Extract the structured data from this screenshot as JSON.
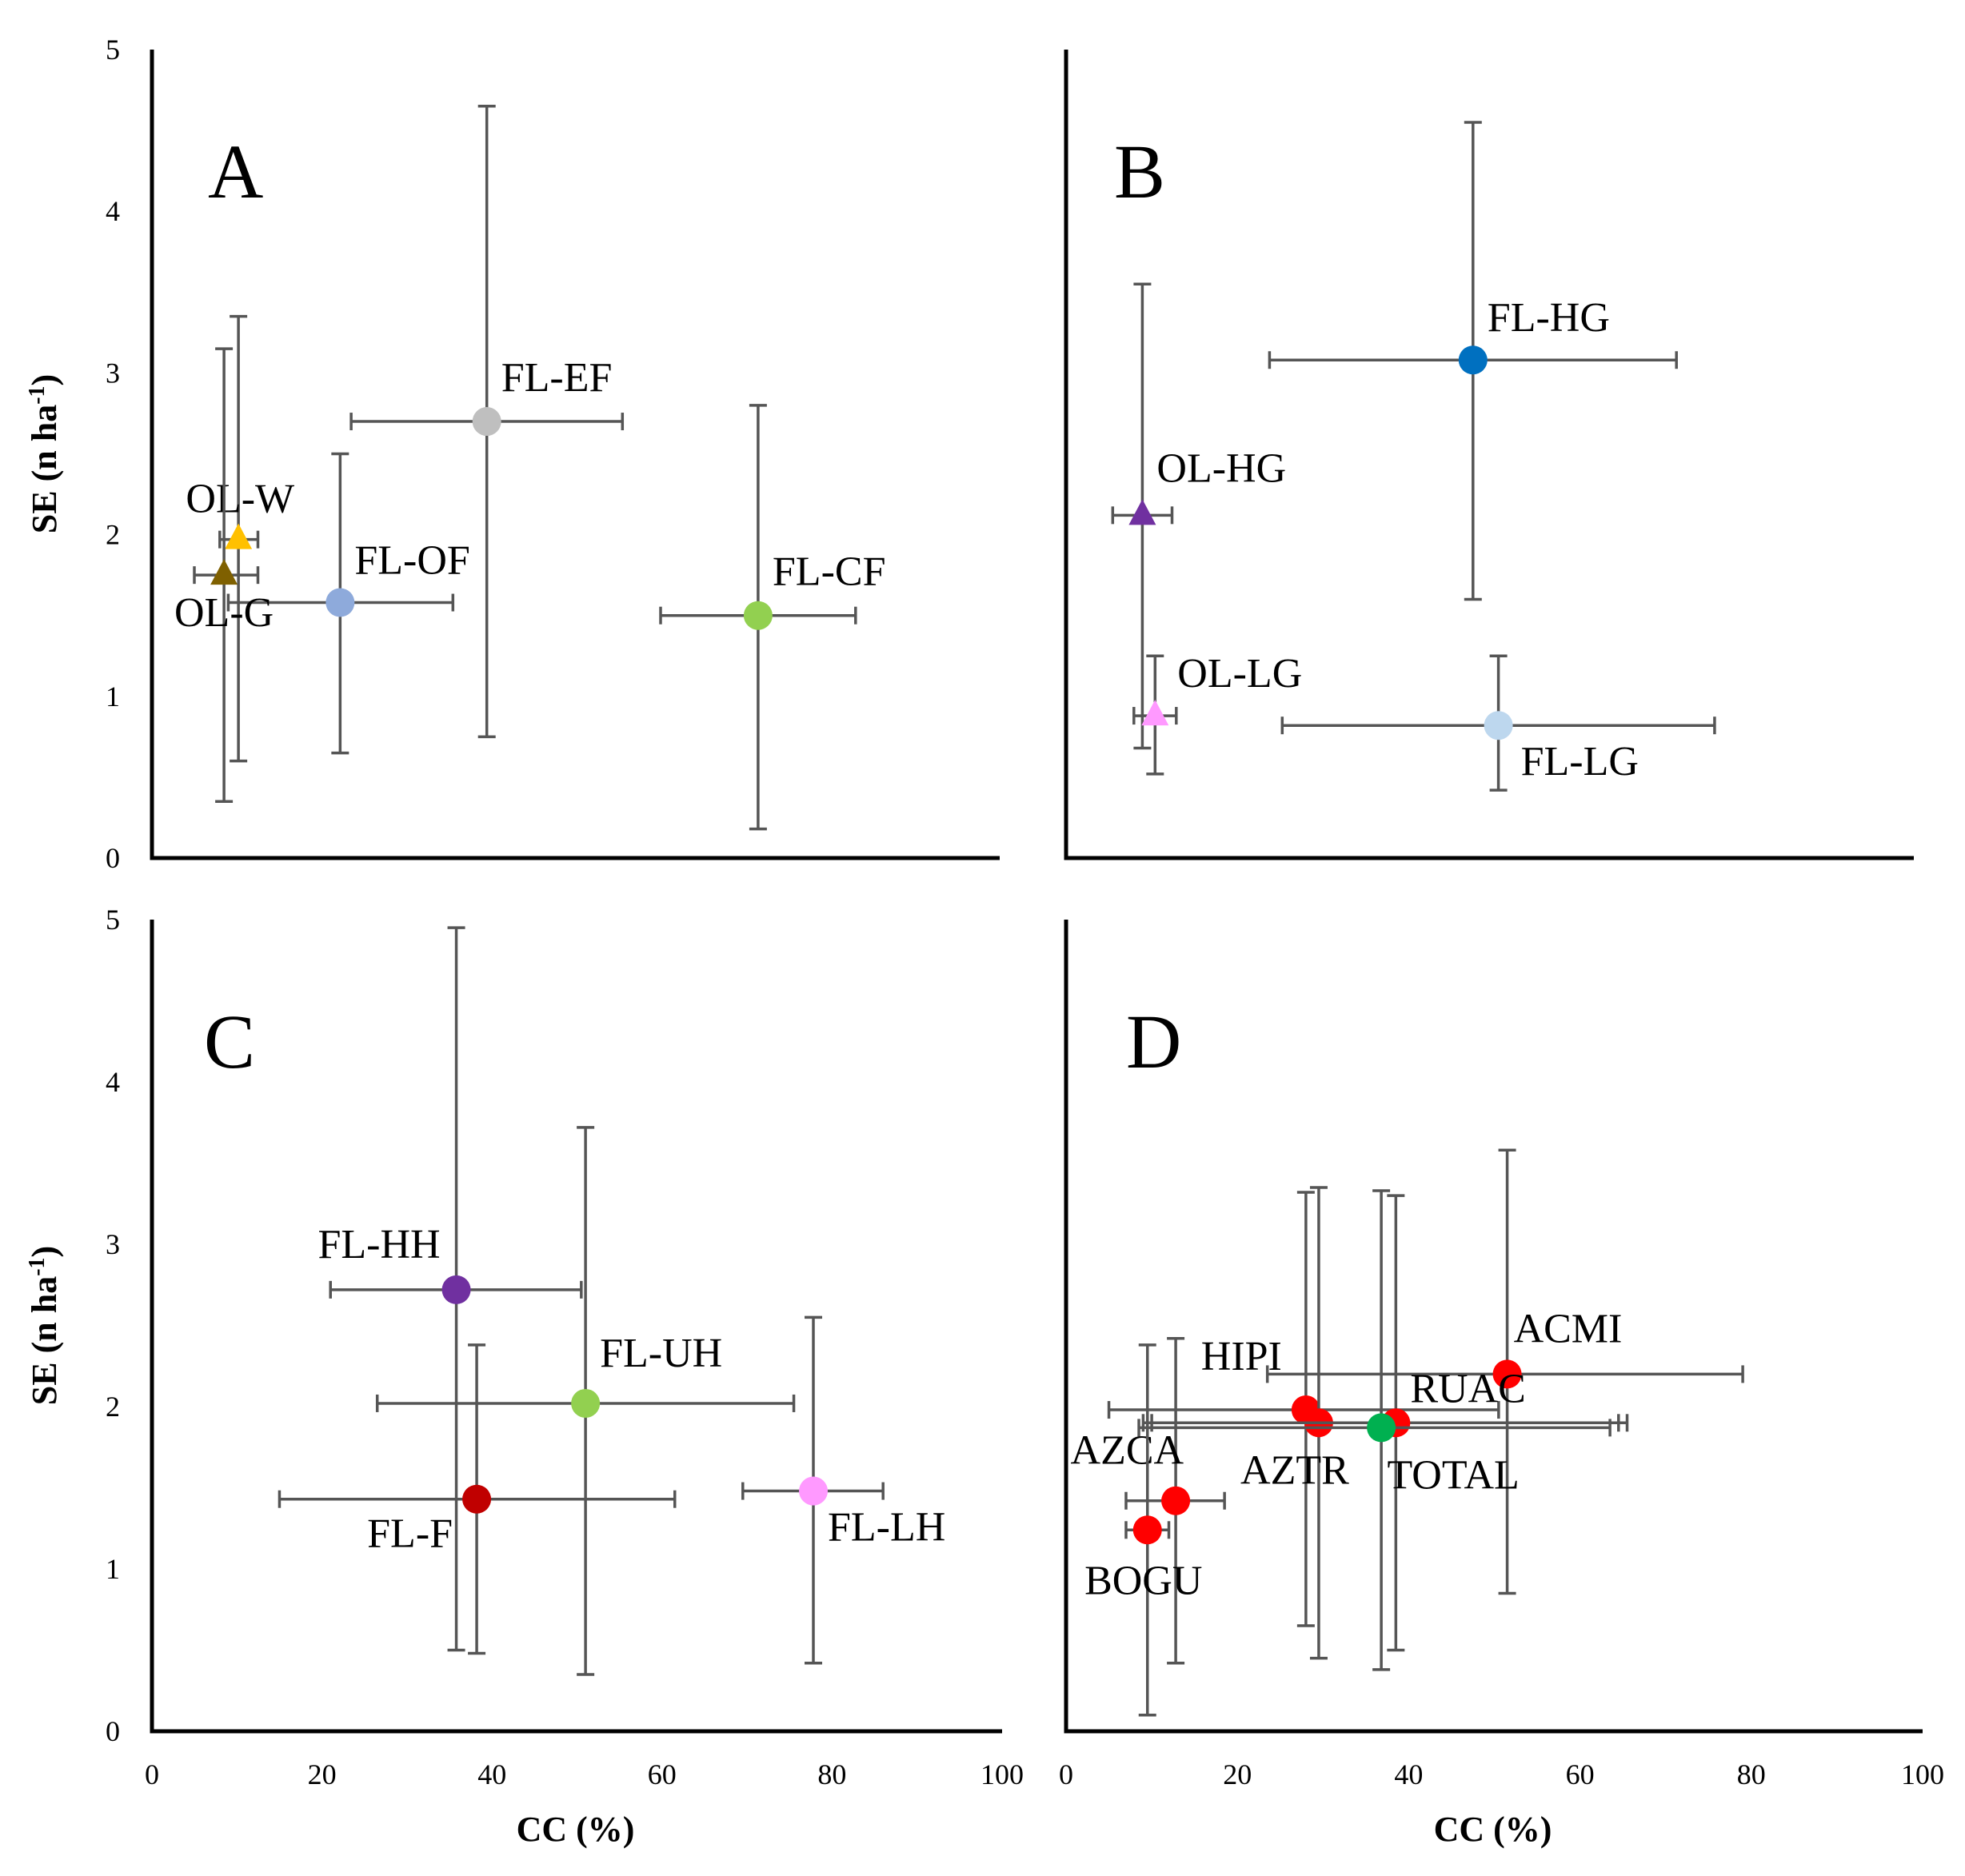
{
  "chart_data": [
    {
      "type": "scatter",
      "panel": "A",
      "xlabel": "",
      "ylabel": "SE (n ha-1)",
      "xlim": [
        0,
        100
      ],
      "ylim": [
        0,
        5
      ],
      "yticks": [
        "0",
        "1",
        "2",
        "3",
        "4",
        "5"
      ],
      "xticks": [],
      "points": [
        {
          "label": "FL-EF",
          "x": 39.5,
          "y": 2.7,
          "xerr": [
            23.5,
            55.5
          ],
          "yerr": [
            0.75,
            4.65
          ],
          "color": "#bfbfbf",
          "marker": "circle",
          "label_pos": "upper-right"
        },
        {
          "label": "OL-W",
          "x": 10.2,
          "y": 1.97,
          "xerr": [
            8.0,
            12.5
          ],
          "yerr": [
            0.6,
            3.35
          ],
          "color": "#ffc000",
          "marker": "triangle",
          "label_pos": "upper-left"
        },
        {
          "label": "FL-OF",
          "x": 22.2,
          "y": 1.58,
          "xerr": [
            9.0,
            35.5
          ],
          "yerr": [
            0.65,
            2.5
          ],
          "color": "#8eaadb",
          "marker": "circle",
          "label_pos": "upper-right"
        },
        {
          "label": "OL-G",
          "x": 8.5,
          "y": 1.75,
          "xerr": [
            5.0,
            12.5
          ],
          "yerr": [
            0.35,
            3.15
          ],
          "color": "#7f6000",
          "marker": "triangle",
          "label_pos": "below"
        },
        {
          "label": "FL-CF",
          "x": 71.5,
          "y": 1.5,
          "xerr": [
            60.0,
            83.0
          ],
          "yerr": [
            0.18,
            2.8
          ],
          "color": "#92d050",
          "marker": "circle",
          "label_pos": "upper-right"
        }
      ]
    },
    {
      "type": "scatter",
      "panel": "B",
      "xlabel": "",
      "ylabel": "",
      "xlim": [
        0,
        100
      ],
      "ylim": [
        0,
        5
      ],
      "yticks": [],
      "xticks": [],
      "points": [
        {
          "label": "FL-HG",
          "x": 48.0,
          "y": 3.08,
          "xerr": [
            24.0,
            72.0
          ],
          "yerr": [
            1.6,
            4.55
          ],
          "color": "#0070c0",
          "marker": "circle",
          "label_pos": "upper-right"
        },
        {
          "label": "OL-HG",
          "x": 9.0,
          "y": 2.12,
          "xerr": [
            5.5,
            12.5
          ],
          "yerr": [
            0.68,
            3.55
          ],
          "color": "#7030a0",
          "marker": "triangle",
          "label_pos": "upper-right"
        },
        {
          "label": "OL-LG",
          "x": 10.5,
          "y": 0.88,
          "xerr": [
            8.0,
            13.0
          ],
          "yerr": [
            0.52,
            1.25
          ],
          "color": "#ff99ff",
          "marker": "triangle",
          "label_pos": "upper-right"
        },
        {
          "label": "FL-LG",
          "x": 51.0,
          "y": 0.82,
          "xerr": [
            25.5,
            76.5
          ],
          "yerr": [
            0.42,
            1.25
          ],
          "color": "#bdd7ee",
          "marker": "circle",
          "label_pos": "lower-right"
        }
      ]
    },
    {
      "type": "scatter",
      "panel": "C",
      "xlabel": "CC (%)",
      "ylabel": "SE (n ha-1)",
      "xlim": [
        0,
        100
      ],
      "ylim": [
        0,
        5
      ],
      "yticks": [
        "0",
        "1",
        "2",
        "3",
        "4",
        "5"
      ],
      "xticks": [
        "0",
        "20",
        "40",
        "60",
        "80",
        "100"
      ],
      "points": [
        {
          "label": "FL-HH",
          "x": 35.8,
          "y": 2.72,
          "xerr": [
            21.0,
            50.5
          ],
          "yerr": [
            0.5,
            4.95
          ],
          "color": "#7030a0",
          "marker": "circle",
          "label_pos": "upper-left"
        },
        {
          "label": "FL-UH",
          "x": 51.0,
          "y": 2.02,
          "xerr": [
            26.5,
            75.5
          ],
          "yerr": [
            0.35,
            3.72
          ],
          "color": "#92d050",
          "marker": "circle",
          "label_pos": "upper-right"
        },
        {
          "label": "FL-F",
          "x": 38.2,
          "y": 1.43,
          "xerr": [
            15.0,
            61.5
          ],
          "yerr": [
            0.48,
            2.38
          ],
          "color": "#c00000",
          "marker": "circle",
          "label_pos": "lower-left"
        },
        {
          "label": "FL-LH",
          "x": 77.8,
          "y": 1.48,
          "xerr": [
            69.5,
            86.0
          ],
          "yerr": [
            0.42,
            2.55
          ],
          "color": "#ff99ff",
          "marker": "circle",
          "label_pos": "lower-right"
        }
      ]
    },
    {
      "type": "scatter",
      "panel": "D",
      "xlabel": "CC (%)",
      "ylabel": "",
      "xlim": [
        0,
        100
      ],
      "ylim": [
        0,
        5
      ],
      "yticks": [],
      "xticks": [
        "0",
        "20",
        "40",
        "60",
        "80",
        "100"
      ],
      "points": [
        {
          "label": "ACMI",
          "x": 51.5,
          "y": 2.2,
          "xerr": [
            23.5,
            79.0
          ],
          "yerr": [
            0.85,
            3.58
          ],
          "color": "#ff0000",
          "marker": "circle",
          "label_pos": "upper-right"
        },
        {
          "label": "HIPI",
          "x": 28.0,
          "y": 1.98,
          "xerr": [
            5.0,
            50.5
          ],
          "yerr": [
            0.65,
            3.32
          ],
          "color": "#ff0000",
          "marker": "circle",
          "label_pos": "upper-left"
        },
        {
          "label": "AZTR",
          "x": 29.5,
          "y": 1.9,
          "xerr": [
            9.0,
            64.5
          ],
          "yerr": [
            0.45,
            3.35
          ],
          "color": "#ff0000",
          "marker": "circle",
          "label_pos": "below"
        },
        {
          "label": "RUAC",
          "x": 38.5,
          "y": 1.9,
          "xerr": [
            10.0,
            65.5
          ],
          "yerr": [
            0.5,
            3.3
          ],
          "color": "#ff0000",
          "marker": "circle",
          "label_pos": "upper-right"
        },
        {
          "label": "TOTAL",
          "x": 36.8,
          "y": 1.87,
          "xerr": [
            8.5,
            63.5
          ],
          "yerr": [
            0.38,
            3.33
          ],
          "color": "#00b050",
          "marker": "circle",
          "label_pos": "below"
        },
        {
          "label": "AZCA",
          "x": 12.8,
          "y": 1.42,
          "xerr": [
            7.0,
            18.5
          ],
          "yerr": [
            0.42,
            2.42
          ],
          "color": "#ff0000",
          "marker": "circle",
          "label_pos": "upper-left"
        },
        {
          "label": "BOGU",
          "x": 9.5,
          "y": 1.24,
          "xerr": [
            7.0,
            12.0
          ],
          "yerr": [
            0.1,
            2.38
          ],
          "color": "#ff0000",
          "marker": "circle",
          "label_pos": "below"
        }
      ]
    }
  ]
}
